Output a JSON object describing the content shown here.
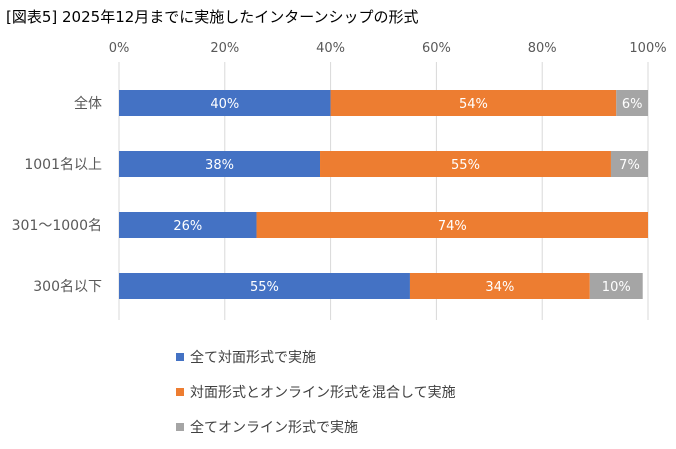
{
  "title": "[図表5] 2025年12月までに実施したインターンシップの形式",
  "chart_data": {
    "type": "bar",
    "orientation": "horizontal",
    "stacked": "percent",
    "categories": [
      "全体",
      "1001名以上",
      "301～1000名",
      "300名以下"
    ],
    "series": [
      {
        "name": "全て対面形式で実施",
        "color": "#4472C4",
        "values": [
          40,
          38,
          26,
          55
        ],
        "labels": [
          "40%",
          "38%",
          "26%",
          "55%"
        ]
      },
      {
        "name": "対面形式とオンライン形式を混合して実施",
        "color": "#ED7D31",
        "values": [
          54,
          55,
          74,
          34
        ],
        "labels": [
          "54%",
          "55%",
          "74%",
          "34%"
        ]
      },
      {
        "name": "全てオンライン形式で実施",
        "color": "#A5A5A5",
        "values": [
          6,
          7,
          0,
          10
        ],
        "labels": [
          "6%",
          "7%",
          "",
          "10%"
        ]
      }
    ],
    "x_ticks": [
      "0%",
      "20%",
      "40%",
      "60%",
      "80%",
      "100%"
    ],
    "xlim": [
      0,
      100
    ],
    "grid": true,
    "legend_position": "bottom"
  }
}
